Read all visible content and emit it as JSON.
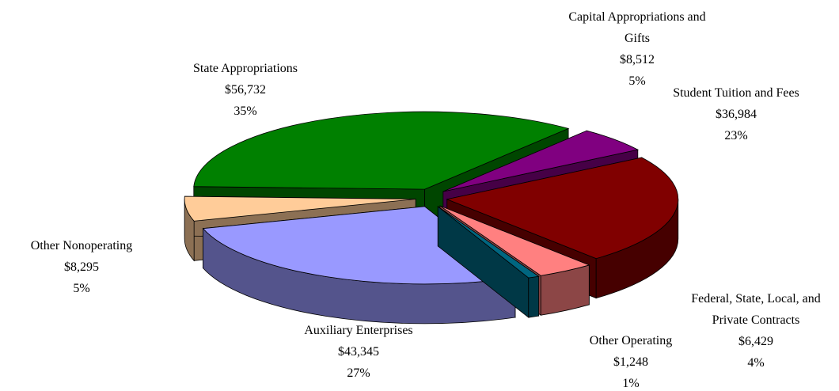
{
  "chart_data": {
    "type": "pie3d",
    "categories": [
      "State Appropriations",
      "Capital Appropriations and Gifts",
      "Student Tuition and Fees",
      "Federal, State, Local, and Private Contracts",
      "Other Operating",
      "Auxiliary Enterprises",
      "Other Nonoperating"
    ],
    "values": [
      56732,
      8512,
      36984,
      6429,
      1248,
      43345,
      8295
    ],
    "value_labels": [
      "$56,732",
      "$8,512",
      "$36,984",
      "$6,429",
      "$1,248",
      "$43,345",
      "$8,295"
    ],
    "percentages": [
      35,
      5,
      23,
      4,
      1,
      27,
      5
    ],
    "percentage_labels": [
      "35%",
      "5%",
      "23%",
      "4%",
      "1%",
      "27%",
      "5%"
    ],
    "colors": [
      "#008000",
      "#800080",
      "#800000",
      "#ff8080",
      "#006680",
      "#9999ff",
      "#ffcc99"
    ]
  }
}
